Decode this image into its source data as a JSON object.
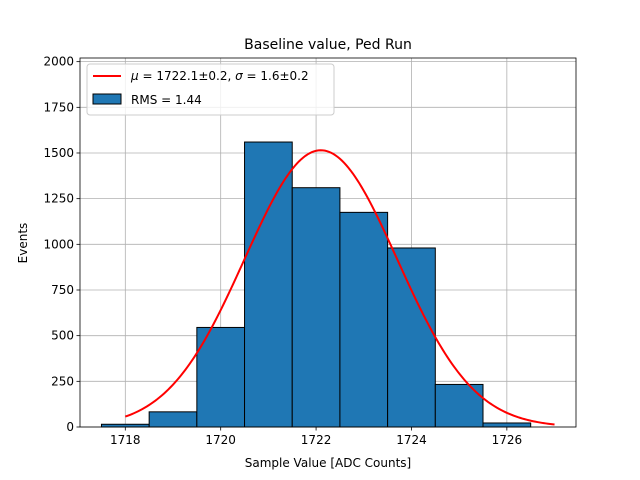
{
  "chart_data": {
    "type": "bar",
    "title": "Baseline value, Ped Run",
    "xlabel": "Sample Value [ADC Counts]",
    "ylabel": "Events",
    "xlim": [
      1717.05,
      1727.45
    ],
    "ylim": [
      0,
      2020
    ],
    "grid": true,
    "legend_position": "top-left",
    "xticks": [
      1718,
      1720,
      1722,
      1724,
      1726
    ],
    "yticks": [
      0,
      250,
      500,
      750,
      1000,
      1250,
      1500,
      1750,
      2000
    ],
    "histogram": {
      "name": "RMS = 1.44",
      "color": "#1f77b4",
      "edgecolor": "#000000",
      "bin_edges": [
        1717.5,
        1718.5,
        1719.5,
        1720.5,
        1721.5,
        1722.5,
        1723.5,
        1724.5,
        1725.5,
        1726.5
      ],
      "values": [
        15,
        83,
        545,
        1560,
        1310,
        1175,
        980,
        233,
        22
      ]
    },
    "fit": {
      "type": "gaussian",
      "name": "$\\mu=1722.1\\pm0.2$, $\\sigma=1.6\\pm0.2$",
      "name_parts": {
        "mu_symbol": "μ",
        "mu_value": " = 1722.1±0.2, ",
        "sigma_symbol": "σ",
        "sigma_value": " = 1.6±0.2"
      },
      "color": "#ff0000",
      "amplitude": 1515,
      "mu": 1722.1,
      "sigma": 1.6,
      "x_range": [
        1718,
        1727
      ]
    }
  }
}
